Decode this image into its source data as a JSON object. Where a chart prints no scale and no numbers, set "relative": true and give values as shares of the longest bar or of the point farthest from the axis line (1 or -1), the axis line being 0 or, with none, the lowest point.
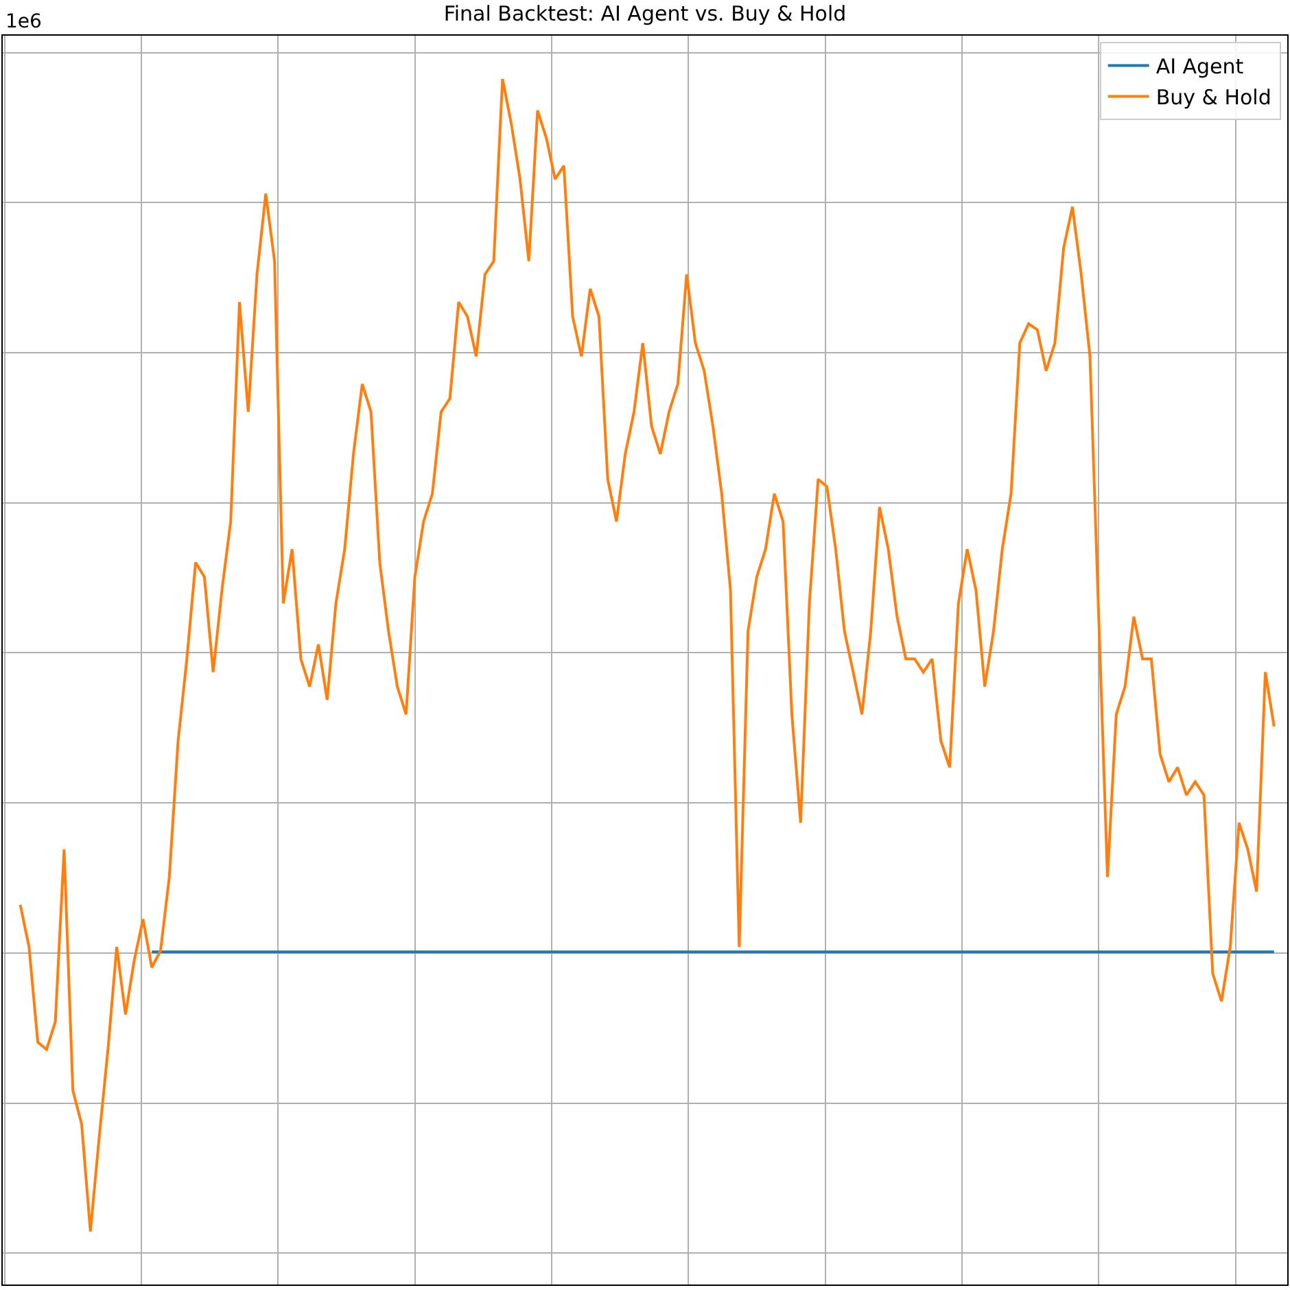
{
  "chart_data": {
    "type": "line",
    "title": "Final Backtest: AI Agent vs. Buy & Hold",
    "relative": true,
    "grid": true,
    "legend": "top right",
    "marker": "none",
    "line_style": "solid",
    "tick_labels": false,
    "annotations": [
      "1e6"
    ],
    "categories": [
      null,
      null,
      null,
      null,
      null,
      null,
      null,
      null,
      null,
      null,
      null,
      null,
      null,
      null,
      null,
      null,
      null,
      null,
      null,
      null,
      null,
      null,
      null,
      null,
      null,
      null,
      null,
      null,
      null,
      null,
      null,
      null,
      null,
      null,
      null,
      null,
      null,
      null,
      null,
      null,
      null,
      null,
      null,
      null,
      null,
      null,
      null,
      null,
      null,
      null,
      null,
      null,
      null,
      null,
      null,
      null,
      null,
      null,
      null,
      null,
      null,
      null,
      null,
      null,
      null,
      null,
      null,
      null,
      null,
      null,
      null,
      null,
      null,
      null,
      null,
      null,
      null,
      null,
      null,
      null,
      null,
      null,
      null,
      null,
      null,
      null,
      null,
      null,
      null,
      null,
      null,
      null,
      null,
      null,
      null,
      null,
      null,
      null,
      null,
      null,
      null,
      null,
      null,
      null,
      null,
      null,
      null,
      null,
      null,
      null,
      null,
      null,
      null,
      null,
      null,
      null,
      null,
      null,
      null,
      null,
      null,
      null,
      null,
      null,
      null,
      null,
      null,
      null,
      null,
      null,
      null,
      null,
      null,
      null,
      null,
      null,
      null,
      null,
      null,
      null,
      null,
      null,
      null,
      null
    ],
    "series": [
      {
        "name": "AI Agent",
        "color": "#1f77b4",
        "values": [
          null,
          null,
          null,
          null,
          null,
          null,
          null,
          null,
          null,
          null,
          null,
          null,
          null,
          null,
          null,
          0.276,
          0.276,
          0.276,
          0.276,
          0.276,
          0.276,
          0.276,
          0.276,
          0.276,
          0.276,
          0.276,
          0.276,
          0.276,
          0.276,
          0.276,
          0.276,
          0.276,
          0.276,
          0.276,
          0.276,
          0.276,
          0.276,
          0.276,
          0.276,
          0.276,
          0.276,
          0.276,
          0.276,
          0.276,
          0.276,
          0.276,
          0.276,
          0.276,
          0.276,
          0.276,
          0.276,
          0.276,
          0.276,
          0.276,
          0.276,
          0.276,
          0.276,
          0.276,
          0.276,
          0.276,
          0.276,
          0.276,
          0.276,
          0.276,
          0.276,
          0.276,
          0.276,
          0.276,
          0.276,
          0.276,
          0.276,
          0.276,
          0.276,
          0.276,
          0.276,
          0.276,
          0.276,
          0.276,
          0.276,
          0.276,
          0.276,
          0.276,
          0.276,
          0.276,
          0.276,
          0.276,
          0.276,
          0.276,
          0.276,
          0.276,
          0.276,
          0.276,
          0.276,
          0.276,
          0.276,
          0.276,
          0.276,
          0.276,
          0.276,
          0.276,
          0.276,
          0.276,
          0.276,
          0.276,
          0.276,
          0.276,
          0.276,
          0.276,
          0.276,
          0.276,
          0.276,
          0.276,
          0.276,
          0.276,
          0.276,
          0.276,
          0.276,
          0.276,
          0.276,
          0.276,
          0.276,
          0.276,
          0.276,
          0.276,
          0.276,
          0.276,
          0.276,
          0.276,
          0.276,
          0.276,
          0.276,
          0.276,
          0.276,
          0.276,
          0.276,
          0.276,
          0.276,
          0.276,
          0.276,
          0.276,
          0.276,
          0.276,
          0.276,
          0.276
        ]
      },
      {
        "name": "Buy & Hold",
        "color": "#ff7f0e",
        "values": [
          0.315,
          0.28,
          0.201,
          0.195,
          0.218,
          0.361,
          0.161,
          0.133,
          0.044,
          0.122,
          0.195,
          0.28,
          0.224,
          0.269,
          0.303,
          0.263,
          0.277,
          0.338,
          0.451,
          0.519,
          0.599,
          0.587,
          0.508,
          0.576,
          0.633,
          0.815,
          0.724,
          0.838,
          0.905,
          0.849,
          0.565,
          0.61,
          0.519,
          0.496,
          0.531,
          0.485,
          0.565,
          0.61,
          0.689,
          0.747,
          0.724,
          0.599,
          0.542,
          0.496,
          0.473,
          0.587,
          0.633,
          0.656,
          0.724,
          0.735,
          0.815,
          0.803,
          0.77,
          0.838,
          0.849,
          1.0,
          0.963,
          0.917,
          0.849,
          0.974,
          0.951,
          0.917,
          0.928,
          0.803,
          0.77,
          0.826,
          0.803,
          0.668,
          0.633,
          0.689,
          0.724,
          0.781,
          0.712,
          0.689,
          0.724,
          0.747,
          0.838,
          0.781,
          0.758,
          0.712,
          0.656,
          0.576,
          0.28,
          0.542,
          0.587,
          0.61,
          0.656,
          0.633,
          0.473,
          0.383,
          0.565,
          0.668,
          0.662,
          0.61,
          0.542,
          0.508,
          0.473,
          0.542,
          0.645,
          0.61,
          0.554,
          0.519,
          0.519,
          0.508,
          0.519,
          0.451,
          0.429,
          0.565,
          0.61,
          0.576,
          0.496,
          0.542,
          0.61,
          0.656,
          0.781,
          0.797,
          0.792,
          0.758,
          0.781,
          0.86,
          0.894,
          0.838,
          0.77,
          0.554,
          0.338,
          0.473,
          0.496,
          0.554,
          0.519,
          0.519,
          0.44,
          0.417,
          0.429,
          0.406,
          0.417,
          0.406,
          0.258,
          0.235,
          0.28,
          0.383,
          0.361,
          0.326,
          0.508,
          0.463
        ]
      }
    ]
  }
}
